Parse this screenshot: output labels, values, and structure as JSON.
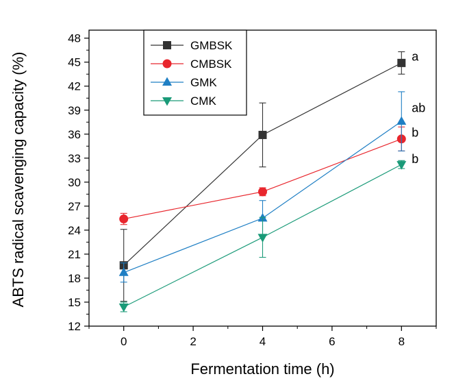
{
  "chart_data": {
    "type": "line",
    "title": "",
    "xlabel": "Fermentation time (h)",
    "ylabel": "ABTS radical scavenging capacity (%)",
    "xlim": [
      -1,
      9
    ],
    "ylim": [
      12,
      49
    ],
    "x_ticks": [
      0,
      2,
      4,
      6,
      8
    ],
    "y_ticks": [
      12,
      15,
      18,
      21,
      24,
      27,
      30,
      33,
      36,
      39,
      42,
      45,
      48
    ],
    "legend_position": "top-left",
    "series": [
      {
        "name": "GMBSK",
        "color": "#333333",
        "marker": "square",
        "x": [
          0,
          4,
          8
        ],
        "y": [
          19.6,
          35.9,
          44.9
        ],
        "err": [
          4.5,
          4.0,
          1.4
        ]
      },
      {
        "name": "CMBSK",
        "color": "#e8262d",
        "marker": "circle",
        "x": [
          0,
          4,
          8
        ],
        "y": [
          25.4,
          28.8,
          35.4
        ],
        "err": [
          0.7,
          0.5,
          1.5
        ]
      },
      {
        "name": "GMK",
        "color": "#1f7fc4",
        "marker": "triangle-up",
        "x": [
          0,
          4,
          8
        ],
        "y": [
          18.7,
          25.5,
          37.6
        ],
        "err": [
          1.2,
          2.2,
          3.7
        ]
      },
      {
        "name": "CMK",
        "color": "#1a9a78",
        "marker": "triangle-down",
        "x": [
          0,
          4,
          8
        ],
        "y": [
          14.4,
          23.1,
          32.2
        ],
        "err": [
          0.6,
          2.5,
          0.5
        ]
      }
    ],
    "annotations": [
      {
        "text": "a",
        "x": 8,
        "y": 45.7
      },
      {
        "text": "ab",
        "x": 8,
        "y": 39.3
      },
      {
        "text": "b",
        "x": 8,
        "y": 36.2
      },
      {
        "text": "b",
        "x": 8,
        "y": 32.9
      }
    ]
  }
}
